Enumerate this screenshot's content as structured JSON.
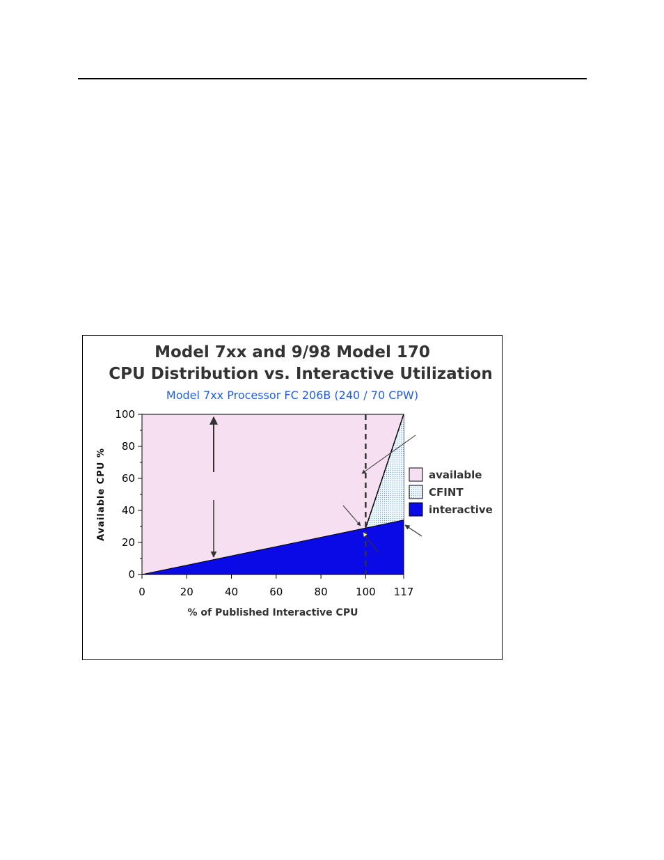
{
  "chart_data": {
    "type": "area",
    "title": "Model 7xx and 9/98 Model 170",
    "title2": "CPU Distribution vs. Interactive Utilization",
    "subtitle": "Model 7xx Processor FC 206B  (240 / 70 CPW)",
    "xlabel": "% of Published Interactive CPU",
    "ylabel": "Available CPU %",
    "x": [
      0,
      100,
      117
    ],
    "xlim": [
      0,
      120
    ],
    "ylim": [
      0,
      100
    ],
    "xticks": [
      0,
      20,
      40,
      60,
      80,
      100,
      117
    ],
    "yticks": [
      0,
      20,
      40,
      60,
      80,
      100
    ],
    "series": [
      {
        "name": "available",
        "values": [
          100,
          100,
          100
        ]
      },
      {
        "name": "CFINT",
        "values": [
          0,
          29,
          100
        ]
      },
      {
        "name": "interactive",
        "values": [
          0,
          29,
          34
        ]
      }
    ],
    "reference_line_x": 100,
    "colors": {
      "available": "#f5dff0",
      "CFINT": "#d8ecf4",
      "interactive": "#0a0ae6",
      "subtitle": "#1f5fe8",
      "highlight_arrow": "#ffff66"
    }
  }
}
